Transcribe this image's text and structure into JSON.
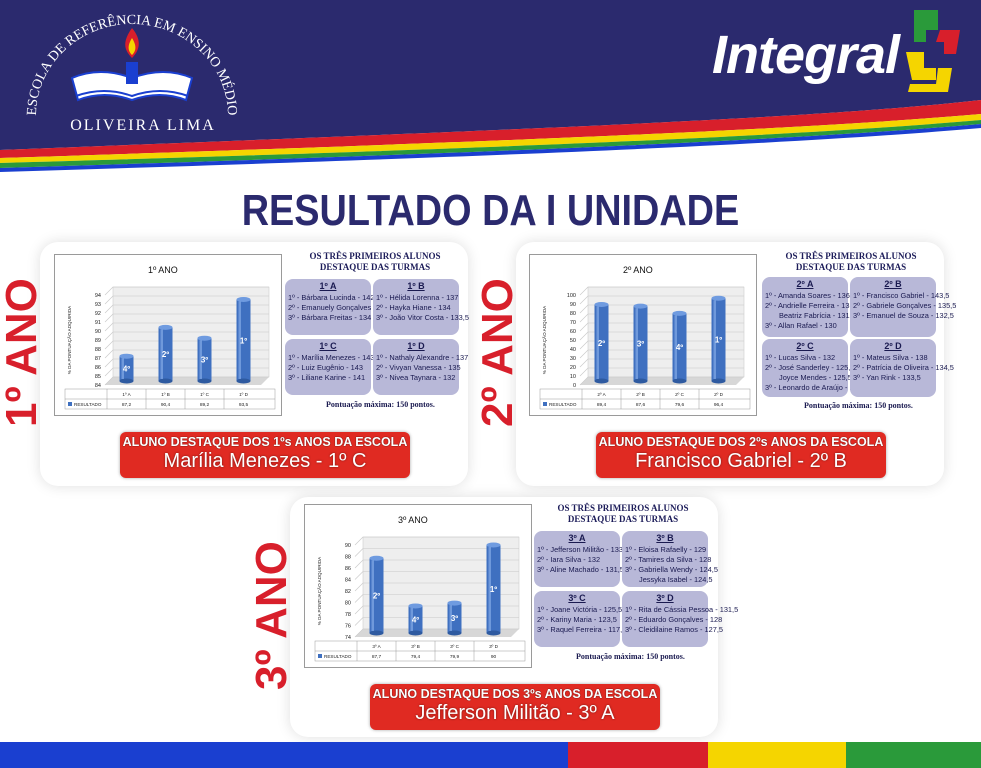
{
  "header": {
    "school_arc": "ESCOLA DE REFERÊNCIA EM ENSINO MÉDIO",
    "school_name": "OLIVEIRA LIMA",
    "brand": "Integral"
  },
  "page_title": "RESULTADO DA I UNIDADE",
  "yaxis_label": "% DA PONTUAÇÃO ADQUIRIDA",
  "legend_label": "RESULTADO",
  "best_title_l1": "OS TRÊS PRIMEIROS ALUNOS",
  "best_title_l2": "DESTAQUE DAS TURMAS",
  "max_points": "Pontuação máxima: 150 pontos.",
  "colors": {
    "navy": "#2b2a6e",
    "red": "#d81f2b",
    "yellow": "#f5d500",
    "green": "#2a9a3a",
    "blue": "#1a3fd0",
    "bar": "#3f70c0"
  },
  "years": [
    {
      "label": "1º ANO",
      "chart_data": {
        "type": "bar",
        "title": "1º ANO",
        "categories": [
          "1º A",
          "1º B",
          "1º C",
          "1º D"
        ],
        "values": [
          87.2,
          90.4,
          89.2,
          93.5
        ],
        "value_labels": [
          "87,2",
          "90,4",
          "89,2",
          "93,5"
        ],
        "ranks": [
          "4º",
          "2º",
          "3º",
          "1º"
        ],
        "ylim": [
          84,
          94
        ],
        "yticks": [
          "84",
          "85",
          "86",
          "87",
          "88",
          "89",
          "90",
          "91",
          "92",
          "93",
          "94"
        ],
        "ylabel": "% DA PONTUAÇÃO ADQUIRIDA",
        "legend": "RESULTADO"
      },
      "classes": [
        {
          "name": "1º A",
          "students": [
            "1º - Bárbara Lucinda - 142",
            "2º - Emanuely Gonçalves - 137",
            "3º - Bárbara Freitas - 134"
          ]
        },
        {
          "name": "1º B",
          "students": [
            "1º - Hélida Lorenna - 137",
            "2º - Hayka Hiane - 134",
            "3º - João Vitor Costa - 133,5"
          ]
        },
        {
          "name": "1º C",
          "students": [
            "1º - Marília Menezes - 143,5",
            "2º - Luiz Eugênio - 143",
            "3º - Liliane Karine - 141"
          ]
        },
        {
          "name": "1º D",
          "students": [
            "1º - Nathaly Alexandre - 137",
            "2º - Vivyan Vanessa - 135",
            "3º - Nivea Taynara - 132"
          ]
        }
      ],
      "award_caption": "ALUNO DESTAQUE DOS 1ºs ANOS DA ESCOLA",
      "award_name": "Marília Menezes - 1º C"
    },
    {
      "label": "2º ANO",
      "chart_data": {
        "type": "bar",
        "title": "2º ANO",
        "categories": [
          "2º A",
          "2º B",
          "2º C",
          "2º D"
        ],
        "values": [
          89.4,
          87.6,
          79.6,
          96.4
        ],
        "value_labels": [
          "89,4",
          "87,6",
          "79,6",
          "96,4"
        ],
        "ranks": [
          "2º",
          "3º",
          "4º",
          "1º"
        ],
        "ylim": [
          0,
          100
        ],
        "yticks": [
          "0",
          "10",
          "20",
          "30",
          "40",
          "50",
          "60",
          "70",
          "80",
          "90",
          "100"
        ],
        "ylabel": "% DA PONTUAÇÃO ADQUIRIDA",
        "legend": "RESULTADO"
      },
      "classes": [
        {
          "name": "2º A",
          "students": [
            "1º - Amanda Soares - 136,5",
            "2º - Andrielle Ferreira - 131,5",
            "Beatriz Fabrícia - 131,5",
            "3º - Allan Rafael - 130"
          ]
        },
        {
          "name": "2º B",
          "students": [
            "1º - Francisco Gabriel - 143,5",
            "2º - Gabriele Gonçalves - 135,5",
            "3º - Emanuel de Souza - 132,5"
          ]
        },
        {
          "name": "2º C",
          "students": [
            "1º - Lucas Silva - 132",
            "2º - José Sanderley - 125,5",
            "Joyce Mendes - 125,5",
            "3º - Leonardo de Araújo - 121"
          ]
        },
        {
          "name": "2º D",
          "students": [
            "1º - Mateus Silva - 138",
            "2º - Patrícia de Oliveira - 134,5",
            "3º - Yan Rink - 133,5"
          ]
        }
      ],
      "award_caption": "ALUNO DESTAQUE DOS 2ºs ANOS DA ESCOLA",
      "award_name": "Francisco Gabriel - 2º B"
    },
    {
      "label": "3º ANO",
      "chart_data": {
        "type": "bar",
        "title": "3º ANO",
        "categories": [
          "3º A",
          "3º B",
          "3º C",
          "3º D"
        ],
        "values": [
          87.7,
          79.4,
          79.9,
          90
        ],
        "value_labels": [
          "87,7",
          "79,4",
          "79,9",
          "90"
        ],
        "ranks": [
          "2º",
          "4º",
          "3º",
          "1º"
        ],
        "ylim": [
          74,
          90
        ],
        "yticks": [
          "74",
          "76",
          "78",
          "80",
          "82",
          "84",
          "86",
          "88",
          "90"
        ],
        "ylabel": "% DA PONTUAÇÃO ADQUIRIDA",
        "legend": "RESULTADO"
      },
      "classes": [
        {
          "name": "3º A",
          "students": [
            "1º - Jefferson Militão - 133",
            "2º - Iara Silva - 132",
            "3º - Aline Machado - 131,5"
          ]
        },
        {
          "name": "3º B",
          "students": [
            "1º - Eloisa Rafaelly - 129",
            "2º - Tamires da Silva - 128",
            "3º - Gabriella Wendy - 124,5",
            "Jessyka Isabel - 124,5"
          ]
        },
        {
          "name": "3º C",
          "students": [
            "1º - Joane Victória - 125,5",
            "2º - Kariny Maria - 123,5",
            "3º - Raquel Ferreira - 117,5"
          ]
        },
        {
          "name": "3º D",
          "students": [
            "1º - Rita de Cássia Pessoa - 131,5",
            "2º - Eduardo Gonçalves - 128",
            "3º - Cleidilaine Ramos - 127,5"
          ]
        }
      ],
      "award_caption": "ALUNO DESTAQUE DOS 3ºs ANOS DA ESCOLA",
      "award_name": "Jefferson Militão - 3º A"
    }
  ]
}
